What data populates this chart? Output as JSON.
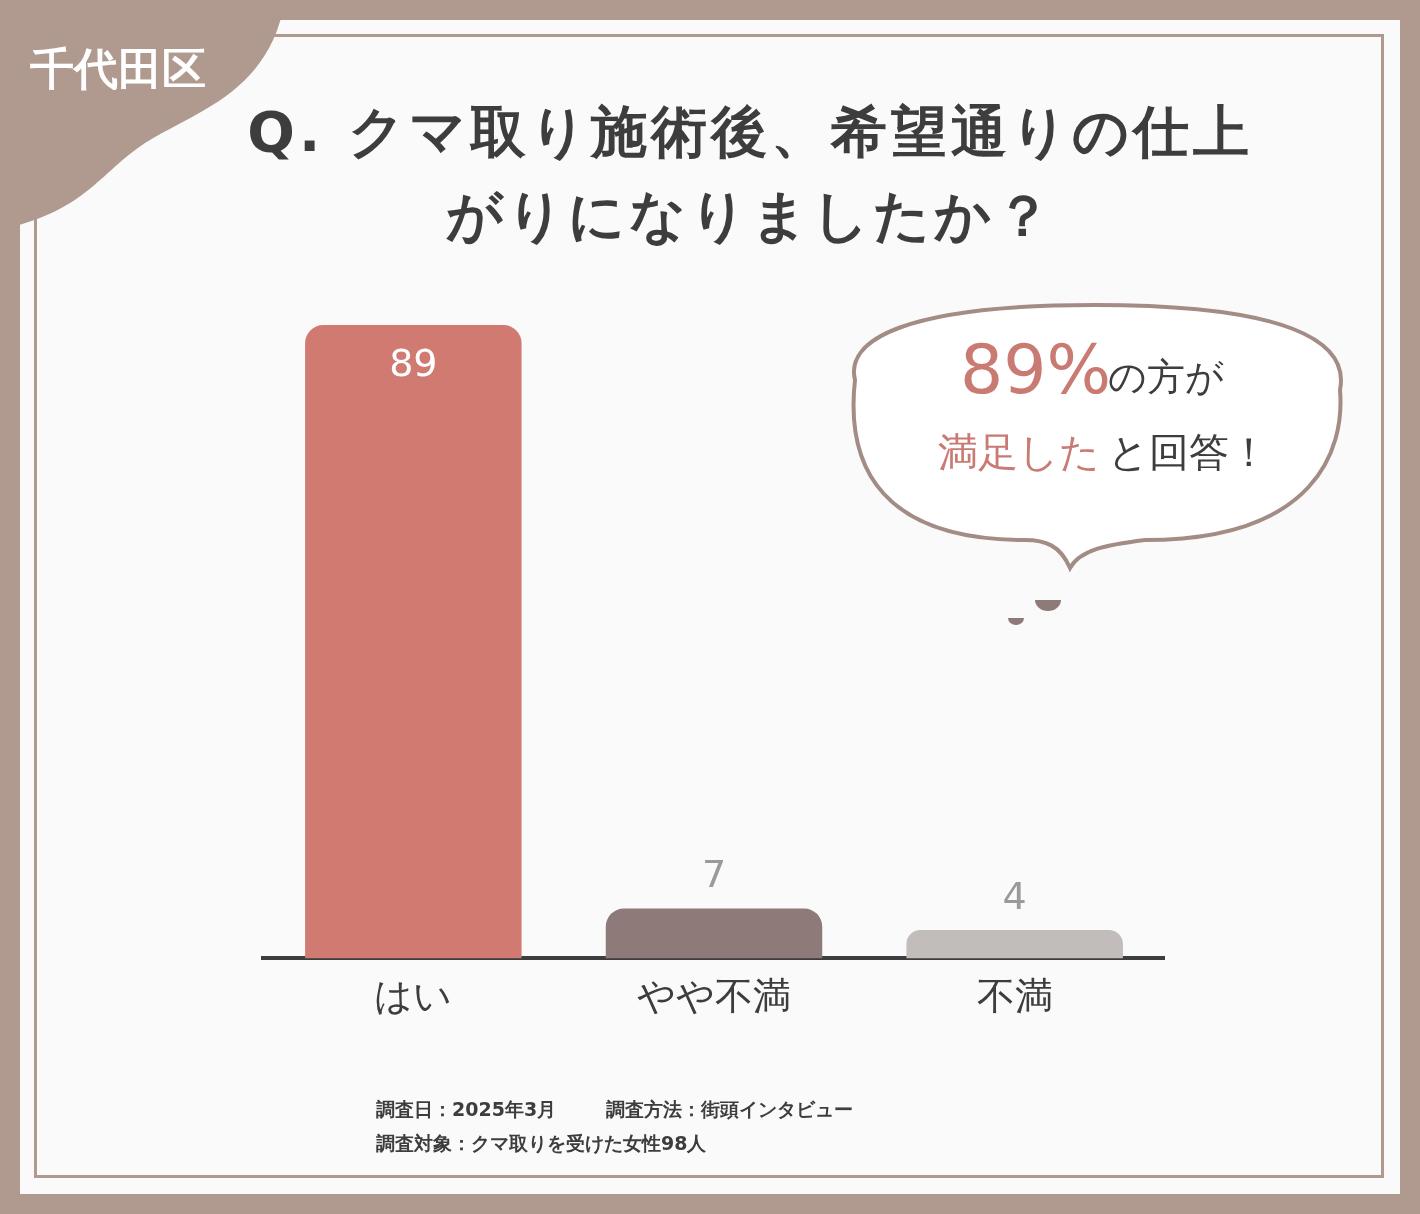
{
  "chart_data": {
    "type": "bar",
    "title": "Q. クマ取り施術後、希望通りの仕上がりになりましたか？",
    "categories": [
      "はい",
      "やや不満",
      "不満"
    ],
    "values": [
      89,
      7,
      4
    ],
    "colors": [
      "#d07a72",
      "#8e7a78",
      "#c2bcbb"
    ],
    "tick_labels": "x",
    "grid": false,
    "legend": false,
    "data_labels": true,
    "annotations": [
      "千代田区",
      "89%",
      "の方が",
      "満足した",
      "と回答！",
      "調査日：2025年3月",
      "調査方法：街頭インタビュー",
      "調査対象：クマ取りを受けた女性98人"
    ]
  }
}
